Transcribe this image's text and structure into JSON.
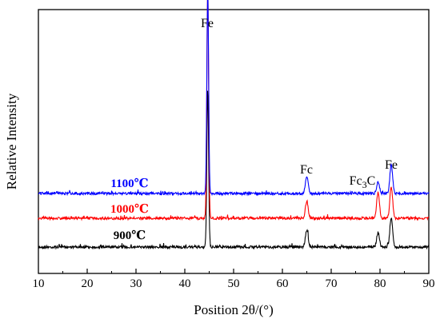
{
  "chart_data": {
    "type": "line",
    "xlabel": "Position 2θ/(°)",
    "ylabel": "Relative Intensity",
    "xlim": [
      10,
      90
    ],
    "x_ticks": [
      "10",
      "20",
      "30",
      "40",
      "50",
      "60",
      "70",
      "80",
      "90"
    ],
    "y_ticks_shown": false,
    "grid": false,
    "legend": "none",
    "series": [
      {
        "name": "900℃",
        "color": "#000000",
        "peaks": [
          {
            "x": 44.7,
            "height": 0.55
          },
          {
            "x": 65.0,
            "height": 0.06
          },
          {
            "x": 79.6,
            "height": 0.05
          },
          {
            "x": 82.3,
            "height": 0.1
          }
        ]
      },
      {
        "name": "1000℃",
        "color": "#ff0000",
        "peaks": [
          {
            "x": 44.7,
            "height": 0.8
          },
          {
            "x": 65.0,
            "height": 0.06
          },
          {
            "x": 79.6,
            "height": 0.09
          },
          {
            "x": 82.3,
            "height": 0.11
          }
        ]
      },
      {
        "name": "1100℃",
        "color": "#0000ff",
        "peaks": [
          {
            "x": 44.7,
            "height": 0.7
          },
          {
            "x": 65.0,
            "height": 0.06
          },
          {
            "x": 79.6,
            "height": 0.04
          },
          {
            "x": 82.3,
            "height": 0.1
          }
        ]
      }
    ],
    "annotations": [
      {
        "text": "Fe",
        "x": 44.7
      },
      {
        "text": "Fc",
        "x": 65.0
      },
      {
        "text": "Fc",
        "sub": "3",
        "suffix": "C",
        "x": 79.6
      },
      {
        "text": "Fe",
        "x": 82.3
      }
    ]
  }
}
